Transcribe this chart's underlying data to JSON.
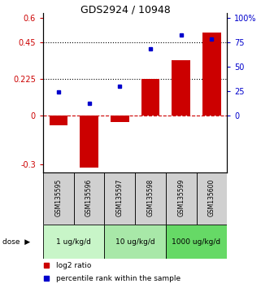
{
  "title": "GDS2924 / 10948",
  "samples": [
    "GSM135595",
    "GSM135596",
    "GSM135597",
    "GSM135598",
    "GSM135599",
    "GSM135600"
  ],
  "log2_ratio": [
    -0.06,
    -0.32,
    -0.04,
    0.225,
    0.34,
    0.51
  ],
  "percentile_rank": [
    24,
    12,
    30,
    68,
    82,
    78
  ],
  "dose_groups": [
    {
      "label": "1 ug/kg/d",
      "samples": [
        0,
        1
      ],
      "color": "#c8f5c8"
    },
    {
      "label": "10 ug/kg/d",
      "samples": [
        2,
        3
      ],
      "color": "#a8e8a8"
    },
    {
      "label": "1000 ug/kg/d",
      "samples": [
        4,
        5
      ],
      "color": "#66d966"
    }
  ],
  "bar_color": "#cc0000",
  "dot_color": "#0000cc",
  "ylim_left": [
    -0.35,
    0.63
  ],
  "ylim_right": [
    -12.97,
    105
  ],
  "yticks_left": [
    -0.3,
    0,
    0.225,
    0.45,
    0.6
  ],
  "yticks_right": [
    0,
    25,
    50,
    75,
    100
  ],
  "ytick_labels_left": [
    "-0.3",
    "0",
    "0.225",
    "0.45",
    "0.6"
  ],
  "ytick_labels_right": [
    "0",
    "25",
    "50",
    "75",
    "100%"
  ],
  "hlines": [
    0.225,
    0.45
  ],
  "background_color": "#ffffff",
  "legend_items": [
    "log2 ratio",
    "percentile rank within the sample"
  ]
}
